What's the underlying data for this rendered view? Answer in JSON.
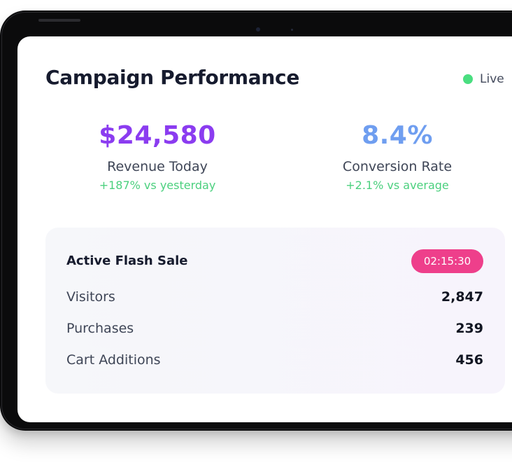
{
  "header": {
    "title": "Campaign Performance",
    "status_label": "Live",
    "status_color": "#4ade80"
  },
  "metrics": [
    {
      "value": "$24,580",
      "label": "Revenue Today",
      "delta": "+187% vs yesterday",
      "color": "#8b3cf0"
    },
    {
      "value": "8.4%",
      "label": "Conversion Rate",
      "delta": "+2.1% vs average",
      "color": "#6f9ef0"
    }
  ],
  "flash_sale": {
    "title": "Active Flash Sale",
    "timer": "02:15:30",
    "timer_color": "#ee3f8b",
    "stats": [
      {
        "label": "Visitors",
        "value": "2,847"
      },
      {
        "label": "Purchases",
        "value": "239"
      },
      {
        "label": "Cart Additions",
        "value": "456"
      }
    ]
  },
  "colors": {
    "positive_delta": "#4bd07e",
    "text_dark": "#161b2e",
    "text_muted": "#3e4556"
  }
}
